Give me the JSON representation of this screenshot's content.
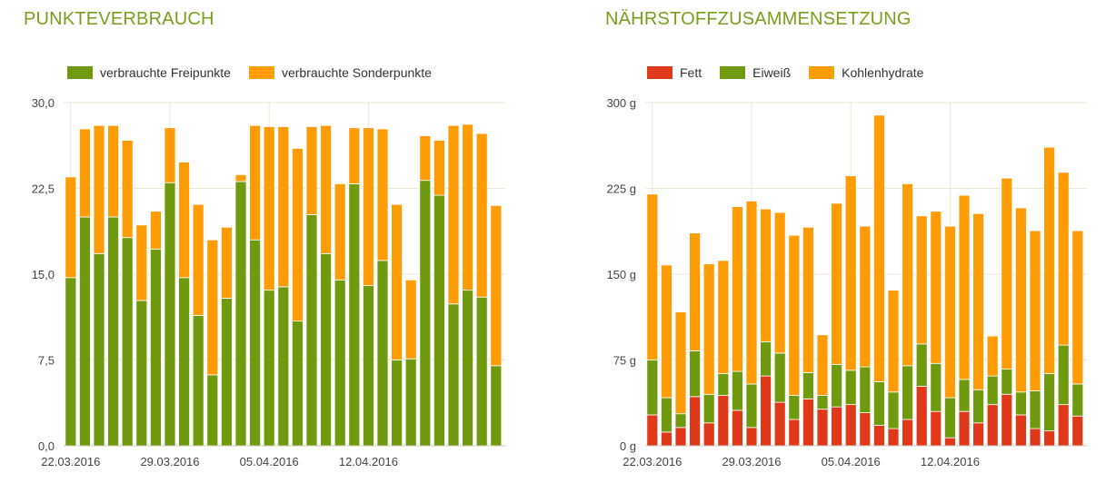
{
  "panels": [
    {
      "title": "PUNKTEVERBRAUCH",
      "legend": [
        {
          "label": "verbrauchte Freipunkte",
          "color": "#6f9a0e"
        },
        {
          "label": "verbrauchte Sonderpunkte",
          "color": "#ff9c05"
        }
      ]
    },
    {
      "title": "NÄHRSTOFFZUSAMMENSETZUNG",
      "legend": [
        {
          "label": "Fett",
          "color": "#e0391a"
        },
        {
          "label": "Eiweiß",
          "color": "#6f9a0e"
        },
        {
          "label": "Kohlenhydrate",
          "color": "#ff9c05"
        }
      ]
    }
  ],
  "chart_data": [
    {
      "type": "bar",
      "stacked": true,
      "title": "PUNKTEVERBRAUCH",
      "ylim": [
        0,
        30
      ],
      "yticks": [
        "0,0",
        "7,5",
        "15,0",
        "22,5",
        "30,0"
      ],
      "xtick_labels": [
        {
          "label": "22.03.2016",
          "index": 0
        },
        {
          "label": "29.03.2016",
          "index": 7
        },
        {
          "label": "05.04.2016",
          "index": 14
        },
        {
          "label": "12.04.2016",
          "index": 21
        }
      ],
      "grid": true,
      "legend_position": "top-left",
      "series": [
        {
          "name": "verbrauchte Freipunkte",
          "color": "#6f9a0e",
          "values": [
            14.7,
            20.0,
            16.8,
            20.0,
            18.2,
            12.7,
            17.2,
            23.0,
            14.7,
            11.4,
            6.2,
            12.9,
            23.1,
            18.0,
            13.6,
            13.9,
            10.9,
            20.2,
            16.8,
            14.5,
            22.9,
            14.0,
            16.2,
            7.5,
            7.6,
            23.2,
            21.9,
            12.4,
            13.6,
            13.0,
            7.0
          ]
        },
        {
          "name": "verbrauchte Sonderpunkte",
          "color": "#ff9c05",
          "values": [
            8.8,
            7.7,
            11.2,
            8.0,
            8.5,
            6.6,
            3.3,
            4.8,
            10.1,
            9.7,
            11.8,
            6.2,
            0.6,
            10.0,
            14.3,
            14.0,
            15.1,
            7.7,
            11.2,
            8.4,
            4.9,
            13.8,
            11.5,
            13.6,
            6.9,
            3.9,
            4.8,
            15.6,
            14.5,
            14.3,
            14.0
          ]
        }
      ]
    },
    {
      "type": "bar",
      "stacked": true,
      "title": "NÄHRSTOFFZUSAMMENSETZUNG",
      "ylim": [
        0,
        300
      ],
      "yticks": [
        "0 g",
        "75 g",
        "150 g",
        "225 g",
        "300 g"
      ],
      "xtick_labels": [
        {
          "label": "22.03.2016",
          "index": 0
        },
        {
          "label": "29.03.2016",
          "index": 7
        },
        {
          "label": "05.04.2016",
          "index": 14
        },
        {
          "label": "12.04.2016",
          "index": 21
        }
      ],
      "grid": true,
      "legend_position": "top-left",
      "series": [
        {
          "name": "Fett",
          "color": "#e0391a",
          "values": [
            27,
            12,
            16,
            43,
            20,
            44,
            31,
            16,
            61,
            38,
            23,
            41,
            32,
            34,
            36,
            29,
            18,
            15,
            23,
            52,
            30,
            7,
            30,
            20,
            36,
            45,
            27,
            15,
            13,
            36,
            26
          ]
        },
        {
          "name": "Eiweiß",
          "color": "#6f9a0e",
          "values": [
            48,
            30,
            12,
            40,
            25,
            19,
            34,
            38,
            30,
            43,
            21,
            23,
            12,
            37,
            30,
            40,
            38,
            32,
            47,
            37,
            42,
            35,
            28,
            29,
            25,
            22,
            20,
            33,
            50,
            52,
            28
          ]
        },
        {
          "name": "Kohlenhydrate",
          "color": "#ff9c05",
          "values": [
            145,
            116,
            89,
            103,
            114,
            99,
            144,
            160,
            116,
            123,
            140,
            127,
            53,
            141,
            170,
            123,
            233,
            89,
            159,
            112,
            133,
            150,
            161,
            154,
            35,
            167,
            161,
            140,
            198,
            151,
            134
          ]
        }
      ]
    }
  ]
}
